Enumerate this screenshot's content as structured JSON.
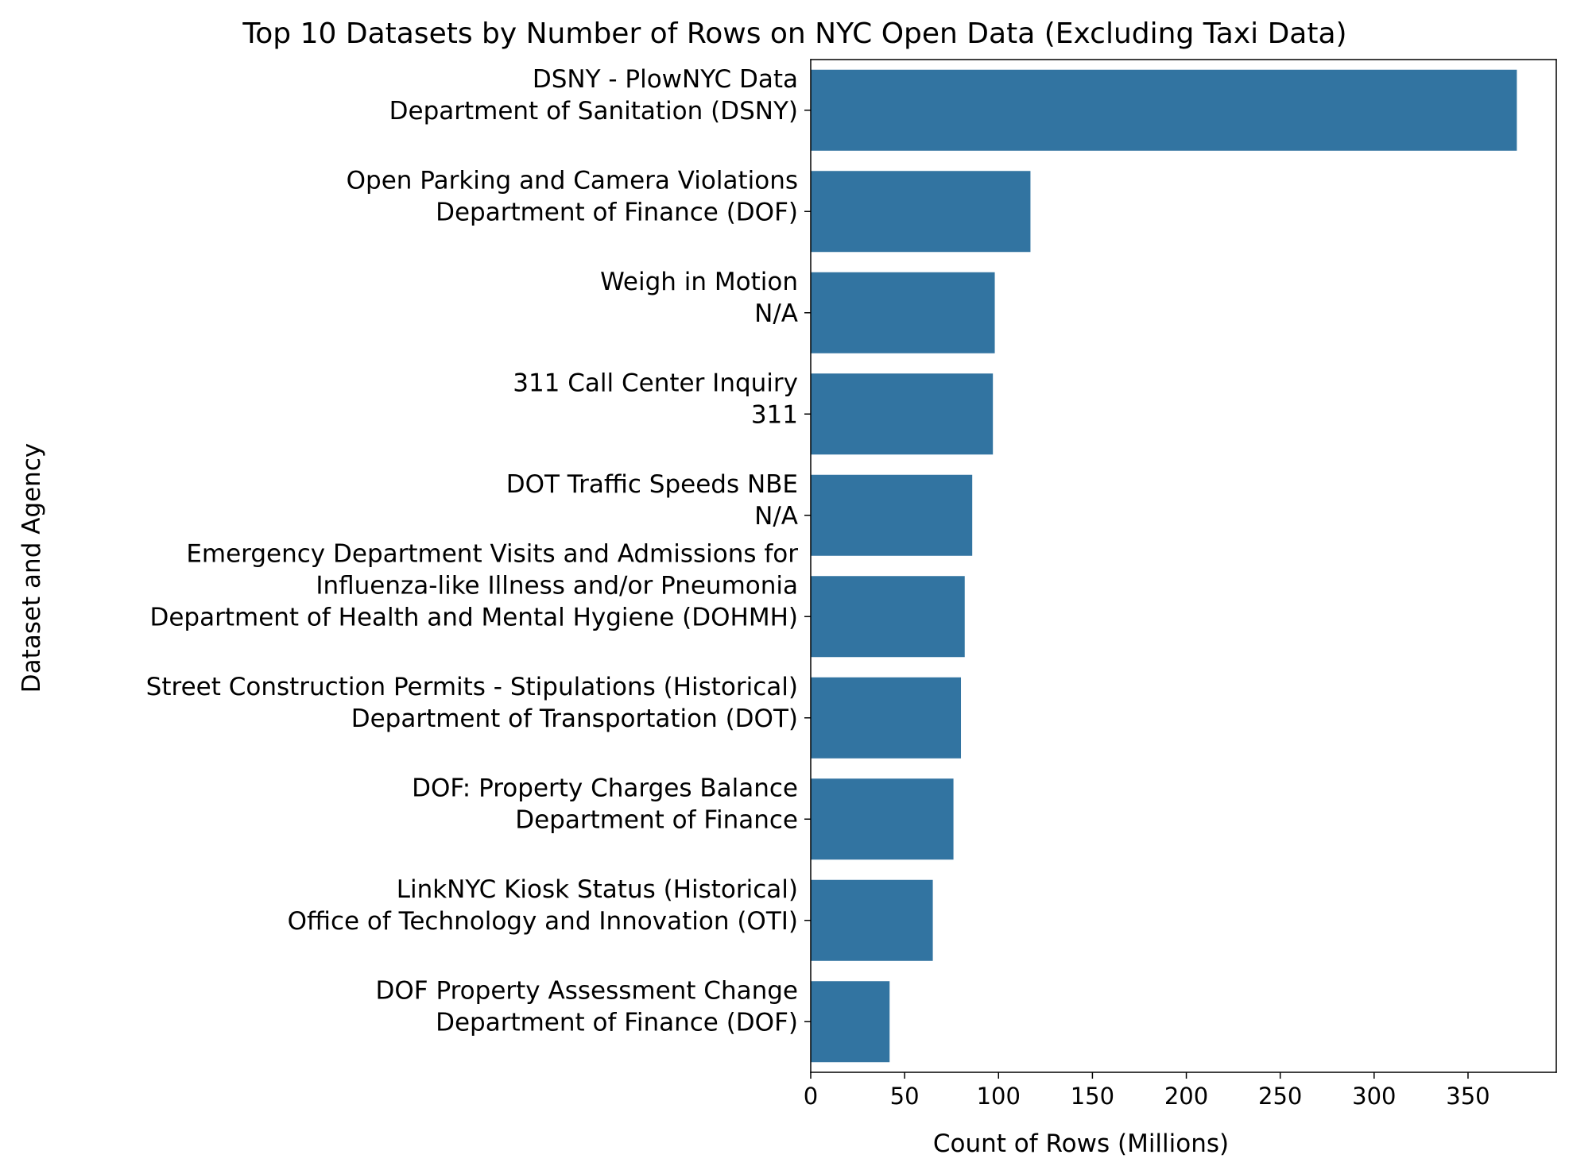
{
  "chart_data": {
    "type": "bar",
    "orientation": "horizontal",
    "title": "Top 10 Datasets by Number of Rows on NYC Open Data (Excluding Taxi Data)",
    "xlabel": "Count of Rows (Millions)",
    "ylabel": "Dataset and Agency",
    "xlim": [
      0,
      397
    ],
    "xticks": [
      0,
      50,
      100,
      150,
      200,
      250,
      300,
      350
    ],
    "bar_color": "#3274a1",
    "grid": false,
    "categories": [
      [
        "DSNY - PlowNYC Data",
        "Department of Sanitation (DSNY)"
      ],
      [
        "Open Parking and Camera Violations",
        "Department of Finance (DOF)"
      ],
      [
        "Weigh in Motion",
        "N/A"
      ],
      [
        "311 Call Center Inquiry",
        "311"
      ],
      [
        "DOT Traffic Speeds NBE",
        "N/A"
      ],
      [
        "Emergency Department Visits and Admissions for",
        "Influenza-like Illness and/or Pneumonia",
        "Department of Health and Mental Hygiene (DOHMH)"
      ],
      [
        "Street Construction Permits - Stipulations (Historical)",
        "Department of Transportation (DOT)"
      ],
      [
        "DOF: Property Charges Balance",
        "Department of Finance"
      ],
      [
        "LinkNYC Kiosk Status (Historical)",
        "Office of Technology and Innovation (OTI)"
      ],
      [
        "DOF Property Assessment Change",
        "Department of Finance (DOF)"
      ]
    ],
    "values": [
      376,
      117,
      98,
      97,
      86,
      82,
      80,
      76,
      65,
      42
    ]
  }
}
